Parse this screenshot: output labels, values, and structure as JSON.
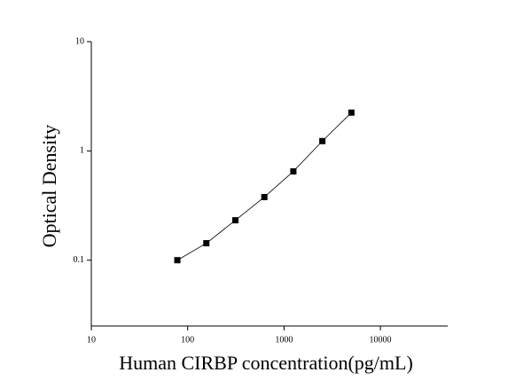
{
  "chart_data": {
    "type": "scatter",
    "x_label": "Human CIRBP concentration(pg/mL)",
    "y_label": "Optical Density",
    "x": [
      78.125,
      156.25,
      312.5,
      625,
      1250,
      2500,
      5000
    ],
    "values": [
      0.1,
      0.143,
      0.232,
      0.378,
      0.65,
      1.23,
      2.24
    ],
    "color": "#000000",
    "connect": true,
    "xscale": "log",
    "yscale": "log",
    "xlim": [
      10,
      50000
    ],
    "ylim": [
      0.025,
      10
    ],
    "xticks": [
      10,
      100,
      1000,
      10000
    ],
    "yticks": [
      0.1,
      1,
      10
    ],
    "grid": false
  }
}
